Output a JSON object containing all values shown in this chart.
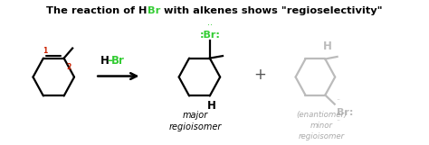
{
  "background_color": "#ffffff",
  "title_black": "The reaction of ",
  "title_h": "H",
  "title_br": "Br",
  "title_rest": " with alkenes shows \"regioselectivity\"",
  "title_color_black": "#000000",
  "title_color_br": "#33cc33",
  "reagent_label": "H–Br",
  "plus_sign": "+",
  "major_label": "major\nregioisomer",
  "minor_label": "(enantiomer)\nminor\nregioisomer",
  "label_color_major": "#000000",
  "label_color_minor": "#aaaaaa",
  "molecule_color_dark": "#000000",
  "molecule_color_light": "#bbbbbb",
  "br_color_major": "#33cc33",
  "br_color_minor": "#aaaaaa",
  "num_color": "#cc2200",
  "figsize": [
    4.74,
    1.61
  ],
  "dpi": 100
}
